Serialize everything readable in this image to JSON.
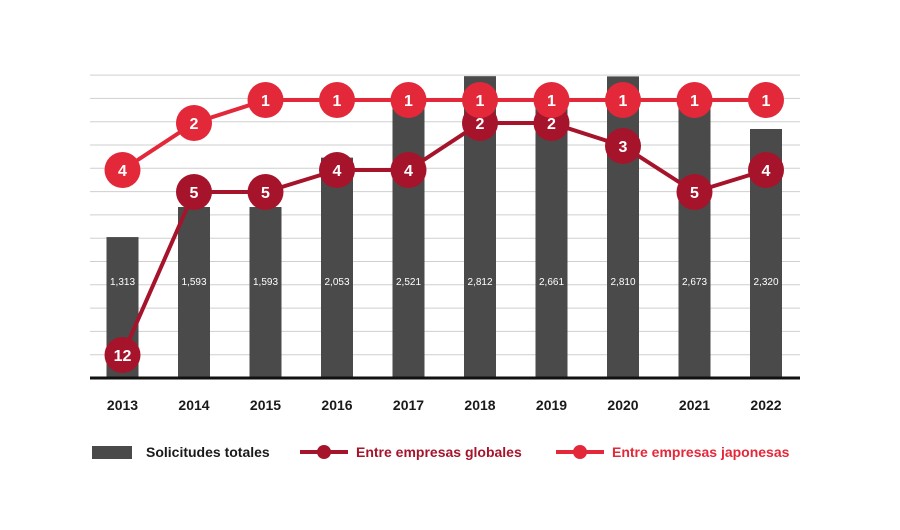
{
  "chart_data": {
    "type": "bar",
    "categories": [
      "2013",
      "2014",
      "2015",
      "2016",
      "2017",
      "2018",
      "2019",
      "2020",
      "2021",
      "2022"
    ],
    "bar_series": {
      "name": "Solicitudes totales",
      "values": [
        1313,
        1593,
        1593,
        2053,
        2521,
        2812,
        2661,
        2810,
        2673,
        2320
      ],
      "labels": [
        "1,313",
        "1,593",
        "1,593",
        "2,053",
        "2,521",
        "2,812",
        "2,661",
        "2,810",
        "2,673",
        "2,320"
      ],
      "color": "#4a4a4a"
    },
    "rank_series": [
      {
        "name": "Entre empresas globales",
        "type": "line",
        "values": [
          12,
          5,
          5,
          4,
          4,
          2,
          2,
          3,
          5,
          4
        ],
        "color": "#a5142b"
      },
      {
        "name": "Entre empresas japonesas",
        "type": "line",
        "values": [
          4,
          2,
          1,
          1,
          1,
          1,
          1,
          1,
          1,
          1
        ],
        "color": "#e3283a"
      }
    ],
    "y_axis_counts": {
      "min": 0,
      "max": 3000
    },
    "rank_axis": {
      "best": 1,
      "worst": 12,
      "inverted": true
    },
    "grid": true,
    "legend_position": "bottom"
  }
}
